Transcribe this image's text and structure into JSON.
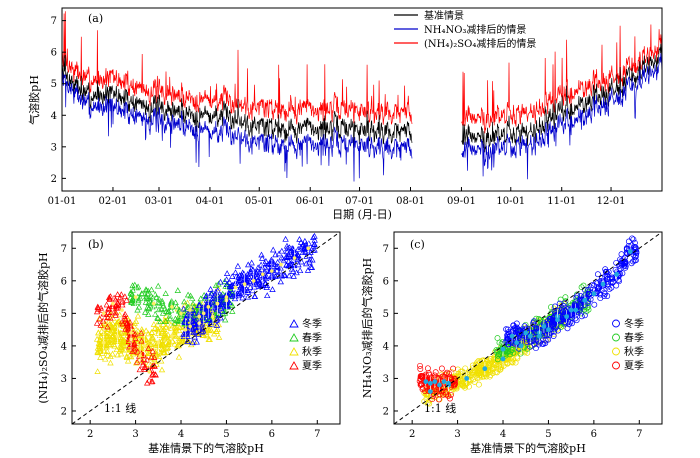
{
  "chart_data": [
    {
      "panel": "(a)",
      "type": "line",
      "xlabel": "日期 (月-日)",
      "ylabel": "气溶胶pH",
      "ylim": [
        1.6,
        7.4
      ],
      "yticks": [
        2,
        3,
        4,
        5,
        6,
        7
      ],
      "xticks": [
        "01-01",
        "02-01",
        "03-01",
        "04-01",
        "05-01",
        "06-01",
        "07-01",
        "08-01",
        "09-01",
        "10-01",
        "11-01",
        "12-01"
      ],
      "xtick_days": [
        0,
        31,
        59,
        90,
        120,
        151,
        181,
        212,
        243,
        273,
        304,
        334
      ],
      "x_unit": "day of year",
      "xlim": [
        0,
        365
      ],
      "gap_days": [
        213,
        243
      ],
      "series": [
        {
          "name": "基准情景",
          "color": "#000000",
          "x": [
            0,
            15,
            30,
            45,
            59,
            75,
            90,
            105,
            120,
            135,
            151,
            165,
            181,
            195,
            210,
            244,
            258,
            273,
            288,
            304,
            319,
            334,
            350,
            365
          ],
          "values": [
            5.4,
            4.6,
            4.7,
            4.4,
            4.2,
            4.1,
            4.0,
            3.9,
            3.7,
            3.6,
            3.6,
            3.6,
            3.6,
            3.5,
            3.5,
            3.3,
            3.3,
            3.4,
            3.6,
            4.1,
            4.4,
            4.8,
            5.3,
            5.9
          ]
        },
        {
          "name": "NH₄NO₃减排后的情景",
          "color": "#0000cc",
          "x": [
            0,
            15,
            30,
            45,
            59,
            75,
            90,
            105,
            120,
            135,
            151,
            165,
            181,
            195,
            210,
            244,
            258,
            273,
            288,
            304,
            319,
            334,
            350,
            365
          ],
          "values": [
            5.2,
            4.3,
            4.3,
            4.0,
            3.8,
            3.7,
            3.5,
            3.4,
            3.2,
            3.1,
            3.1,
            3.1,
            3.1,
            3.0,
            3.0,
            2.9,
            2.9,
            3.0,
            3.2,
            3.7,
            4.0,
            4.5,
            5.0,
            5.6
          ]
        },
        {
          "name": "(NH₄)₂SO₄减排后的情景",
          "color": "#ff0000",
          "x": [
            0,
            15,
            30,
            45,
            59,
            75,
            90,
            105,
            120,
            135,
            151,
            165,
            181,
            195,
            210,
            244,
            258,
            273,
            288,
            304,
            319,
            334,
            350,
            365
          ],
          "values": [
            5.8,
            5.1,
            5.2,
            4.9,
            4.7,
            4.6,
            4.5,
            4.4,
            4.3,
            4.2,
            4.2,
            4.2,
            4.2,
            4.1,
            4.1,
            3.9,
            3.9,
            4.0,
            4.2,
            4.6,
            4.9,
            5.2,
            5.6,
            6.2
          ]
        }
      ]
    },
    {
      "panel": "(b)",
      "type": "scatter",
      "xlabel": "基准情景下的气溶胶pH",
      "ylabel": "(NH₄)₂SO₄减排后的气溶胶pH",
      "xlim": [
        1.6,
        7.5
      ],
      "ylim": [
        1.6,
        7.5
      ],
      "ticks": [
        2,
        3,
        4,
        5,
        6,
        7
      ],
      "annotation": "1:1 线",
      "legend_position": "right",
      "series": [
        {
          "name": "冬季",
          "color": "#0000ff",
          "marker": "triangle",
          "x": [
            4.2,
            4.5,
            4.8,
            5.0,
            5.2,
            5.4,
            5.6,
            5.8,
            6.0,
            6.2,
            6.5,
            6.8
          ],
          "values": [
            4.6,
            5.0,
            5.3,
            5.5,
            5.8,
            5.9,
            6.0,
            6.2,
            6.3,
            6.5,
            6.7,
            7.0
          ]
        },
        {
          "name": "春季",
          "color": "#22cc22",
          "marker": "triangle",
          "x": [
            3.0,
            3.4,
            3.8,
            4.0,
            4.2,
            4.4,
            4.6,
            4.8,
            5.0
          ],
          "values": [
            5.5,
            5.3,
            5.2,
            5.0,
            5.1,
            4.9,
            5.2,
            5.3,
            5.4
          ]
        },
        {
          "name": "秋季",
          "color": "#f0e000",
          "marker": "triangle",
          "x": [
            2.3,
            2.6,
            2.9,
            3.2,
            3.5,
            3.8,
            4.1,
            4.4,
            4.7
          ],
          "values": [
            4.1,
            4.3,
            4.2,
            4.0,
            4.1,
            4.3,
            4.5,
            4.7,
            4.9
          ]
        },
        {
          "name": "夏季",
          "color": "#ff0000",
          "marker": "triangle",
          "x": [
            2.3,
            2.5,
            2.7,
            2.9,
            3.1,
            3.3
          ],
          "values": [
            5.0,
            5.3,
            5.1,
            4.4,
            3.7,
            3.2
          ]
        }
      ]
    },
    {
      "panel": "(c)",
      "type": "scatter",
      "xlabel": "基准情景下的气溶胶pH",
      "ylabel": "NH₄NO₃减排后的气溶胶pH",
      "xlim": [
        1.6,
        7.5
      ],
      "ylim": [
        1.6,
        7.5
      ],
      "ticks": [
        2,
        3,
        4,
        5,
        6,
        7
      ],
      "annotation": "1:1 线",
      "legend_position": "right",
      "series": [
        {
          "name": "冬季",
          "color": "#0000ff",
          "marker": "circle",
          "x": [
            4.2,
            4.5,
            4.8,
            5.0,
            5.2,
            5.4,
            5.6,
            5.8,
            6.0,
            6.2,
            6.5,
            6.8
          ],
          "values": [
            4.3,
            4.4,
            4.3,
            4.5,
            4.8,
            4.9,
            5.1,
            5.4,
            5.6,
            5.9,
            6.2,
            6.9
          ]
        },
        {
          "name": "春季",
          "color": "#22cc22",
          "marker": "circle",
          "x": [
            4.0,
            4.3,
            4.6,
            4.9,
            5.2,
            5.5,
            5.8
          ],
          "values": [
            3.9,
            4.1,
            4.3,
            4.6,
            4.9,
            5.1,
            5.4
          ]
        },
        {
          "name": "秋季",
          "color": "#f0e000",
          "marker": "circle",
          "x": [
            2.4,
            2.8,
            3.2,
            3.6,
            4.0,
            4.4,
            4.8,
            5.2
          ],
          "values": [
            2.6,
            2.8,
            3.0,
            3.3,
            3.6,
            4.0,
            4.4,
            4.9
          ]
        },
        {
          "name": "夏季",
          "color": "#ff0000",
          "marker": "circle",
          "x": [
            2.3,
            2.4,
            2.5,
            2.6,
            2.7,
            2.8
          ],
          "values": [
            2.9,
            2.85,
            2.9,
            2.8,
            2.9,
            2.85
          ]
        }
      ]
    }
  ]
}
